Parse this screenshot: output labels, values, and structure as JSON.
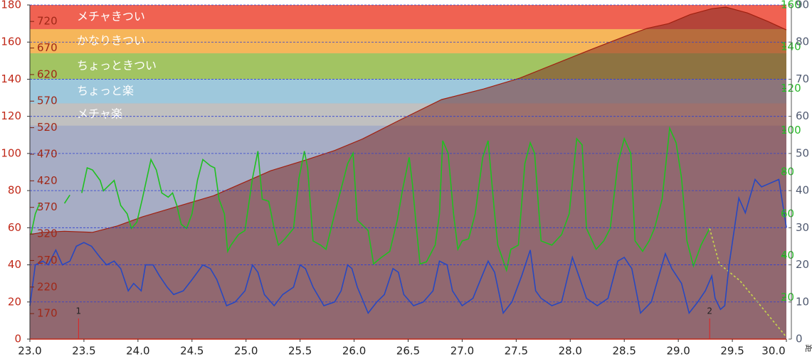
{
  "chart_data": {
    "type": "line",
    "xlim": [
      23,
      30
    ],
    "xticks": [
      {
        "value": 23,
        "label": "23.0"
      },
      23.5,
      {
        "value": 24,
        "label": "24.0"
      },
      24.5,
      {
        "value": 25,
        "label": "25.0"
      },
      25.5,
      {
        "value": 26,
        "label": "26.0"
      },
      26.5,
      {
        "value": 27,
        "label": "27.0"
      },
      27.5,
      {
        "value": 28,
        "label": "28.0"
      },
      28.5,
      {
        "value": 29,
        "label": "29.0"
      },
      29.5,
      {
        "value": 30,
        "label": "30.0"
      }
    ],
    "x_label": "距",
    "ylim": [
      0,
      180
    ],
    "yticks": [
      0,
      20,
      40,
      60,
      80,
      100,
      120,
      140,
      160,
      180
    ],
    "y2lim": [
      0,
      160
    ],
    "y2ticks": [
      20,
      40,
      60,
      80,
      100,
      120,
      140,
      160
    ],
    "y3lim": [
      122,
      751
    ],
    "y3ticks": [
      170,
      220,
      270,
      320,
      370,
      420,
      470,
      520,
      570,
      620,
      670,
      720
    ],
    "y4lim": [
      0,
      90
    ],
    "y4ticks": [
      0,
      10,
      20,
      30,
      40,
      50,
      60,
      70,
      80,
      90
    ],
    "grid": true,
    "bands": [
      {
        "from": 115,
        "to": 127,
        "label": "メチャ楽",
        "color": "#c0c0c0"
      },
      {
        "from": 127,
        "to": 140,
        "label": "ちょっと楽",
        "color": "#9ec8dc"
      },
      {
        "from": 140,
        "to": 154,
        "label": "ちょっときつい",
        "color": "#a2c462"
      },
      {
        "from": 154,
        "to": 167,
        "label": "かなりきつい",
        "color": "#f6b65a"
      },
      {
        "from": 167,
        "to": 180,
        "label": "メチャきつい",
        "color": "#f06252"
      }
    ],
    "markers": [
      {
        "x": 23.45,
        "label": "1"
      },
      {
        "x": 29.29,
        "label": "2"
      }
    ],
    "series": [
      {
        "type": "area",
        "axis": "y3",
        "color": "#a02010",
        "x": [
          23.0,
          23.12,
          23.32,
          23.58,
          23.81,
          24.04,
          24.37,
          24.7,
          24.96,
          25.23,
          25.55,
          25.82,
          26.08,
          26.41,
          26.81,
          27.2,
          27.53,
          27.86,
          28.19,
          28.52,
          28.71,
          28.91,
          29.11,
          29.31,
          29.44,
          29.64,
          29.83,
          30.0
        ],
        "values": [
          319,
          323,
          325,
          323,
          335,
          352,
          372,
          392,
          415,
          439,
          459,
          477,
          499,
          533,
          573,
          593,
          613,
          640,
          667,
          693,
          707,
          716,
          733,
          744,
          747,
          736,
          720,
          704
        ]
      },
      {
        "type": "line",
        "axis": "y2",
        "color": "#20c020",
        "x": [
          23.01,
          23.05,
          23.09,
          23.2,
          23.32,
          23.37,
          23.43,
          23.48,
          23.53,
          23.58,
          23.65,
          23.68,
          23.72,
          23.78,
          23.81,
          23.84,
          23.9,
          23.94,
          23.99,
          24.04,
          24.12,
          24.17,
          24.22,
          24.28,
          24.32,
          24.36,
          24.4,
          24.45,
          24.5,
          24.55,
          24.6,
          24.67,
          24.71,
          24.75,
          24.8,
          24.83,
          24.86,
          24.93,
          24.99,
          25.06,
          25.11,
          25.15,
          25.21,
          25.26,
          25.3,
          25.36,
          25.44,
          25.49,
          25.54,
          25.57,
          25.62,
          25.69,
          25.74,
          25.82,
          25.94,
          25.99,
          26.03,
          26.07,
          26.13,
          26.18,
          26.25,
          26.33,
          26.4,
          26.45,
          26.51,
          26.54,
          26.57,
          26.61,
          26.67,
          26.75,
          26.79,
          26.82,
          26.87,
          26.92,
          26.96,
          27.0,
          27.06,
          27.12,
          27.19,
          27.24,
          27.3,
          27.33,
          27.41,
          27.45,
          27.52,
          27.58,
          27.63,
          27.67,
          27.73,
          27.83,
          27.92,
          27.99,
          28.06,
          28.11,
          28.15,
          28.24,
          28.31,
          28.37,
          28.44,
          28.5,
          28.56,
          28.6,
          28.67,
          28.73,
          28.78,
          28.85,
          28.92,
          28.98,
          29.03,
          29.08,
          29.14,
          29.21,
          29.29
        ],
        "values": [
          50,
          60,
          65,
          null,
          65,
          69,
          null,
          70,
          82,
          81,
          76,
          71,
          73,
          76,
          70,
          64,
          60,
          53,
          56,
          67,
          86,
          81,
          70,
          68,
          70,
          64,
          55,
          53,
          60,
          76,
          86,
          83,
          82,
          67,
          60,
          42,
          45,
          50,
          52,
          77,
          90,
          67,
          66,
          53,
          45,
          48,
          53,
          77,
          90,
          82,
          47,
          45,
          43,
          60,
          84,
          89,
          57,
          55,
          52,
          36,
          39,
          42,
          57,
          72,
          87,
          74,
          57,
          36,
          37,
          45,
          60,
          95,
          89,
          60,
          43,
          47,
          48,
          60,
          87,
          95,
          60,
          45,
          33,
          43,
          45,
          84,
          94,
          89,
          47,
          45,
          50,
          60,
          96,
          93,
          53,
          43,
          47,
          53,
          84,
          96,
          89,
          47,
          42,
          47,
          53,
          67,
          101,
          94,
          77,
          47,
          35,
          45,
          53
        ]
      },
      {
        "type": "line",
        "axis": "y2",
        "color": "#c8d84a",
        "dashed": true,
        "x": [
          29.29,
          29.38,
          29.57,
          30.0
        ],
        "values": [
          53,
          36,
          28,
          1
        ]
      },
      {
        "type": "line",
        "axis": "y4",
        "color": "#2848c0",
        "x": [
          23.0,
          23.05,
          23.12,
          23.17,
          23.24,
          23.3,
          23.37,
          23.43,
          23.5,
          23.57,
          23.65,
          23.71,
          23.78,
          23.84,
          23.91,
          23.96,
          24.03,
          24.07,
          24.14,
          24.2,
          24.27,
          24.33,
          24.42,
          24.5,
          24.6,
          24.67,
          24.73,
          24.82,
          24.9,
          24.99,
          25.06,
          25.11,
          25.17,
          25.26,
          25.34,
          25.44,
          25.5,
          25.55,
          25.62,
          25.72,
          25.82,
          25.88,
          25.94,
          25.98,
          26.03,
          26.13,
          26.21,
          26.28,
          26.36,
          26.41,
          26.46,
          26.55,
          26.64,
          26.73,
          26.79,
          26.86,
          26.91,
          27.0,
          27.1,
          27.17,
          27.24,
          27.3,
          27.38,
          27.46,
          27.55,
          27.63,
          27.68,
          27.73,
          27.83,
          27.92,
          28.02,
          28.08,
          28.15,
          28.25,
          28.35,
          28.44,
          28.5,
          28.57,
          28.65,
          28.75,
          28.81,
          28.88,
          28.94,
          29.03,
          29.1,
          29.18,
          29.25,
          29.31,
          29.34,
          29.39,
          29.43,
          29.47,
          29.56,
          29.62,
          29.71,
          29.77,
          29.85,
          29.93,
          30.0
        ],
        "values": [
          9,
          20,
          21,
          20,
          24,
          20,
          21,
          25,
          26,
          25,
          22,
          20,
          21,
          19,
          13,
          15,
          13,
          20,
          20,
          17,
          14,
          12,
          13,
          16,
          20,
          19,
          16,
          9,
          10,
          13,
          20,
          18,
          12,
          9,
          12,
          14,
          20,
          19,
          14,
          9,
          10,
          13,
          20,
          19,
          14,
          7,
          10,
          12,
          19,
          18,
          12,
          9,
          10,
          13,
          21,
          20,
          13,
          9,
          11,
          16,
          21,
          18,
          7,
          10,
          17,
          24,
          13,
          11,
          9,
          10,
          22,
          17,
          11,
          9,
          11,
          21,
          22,
          19,
          7,
          10,
          16,
          23,
          19,
          15,
          7,
          10,
          13,
          17,
          11,
          8,
          9,
          20,
          38,
          34,
          43,
          41,
          42,
          43,
          30
        ]
      }
    ]
  }
}
